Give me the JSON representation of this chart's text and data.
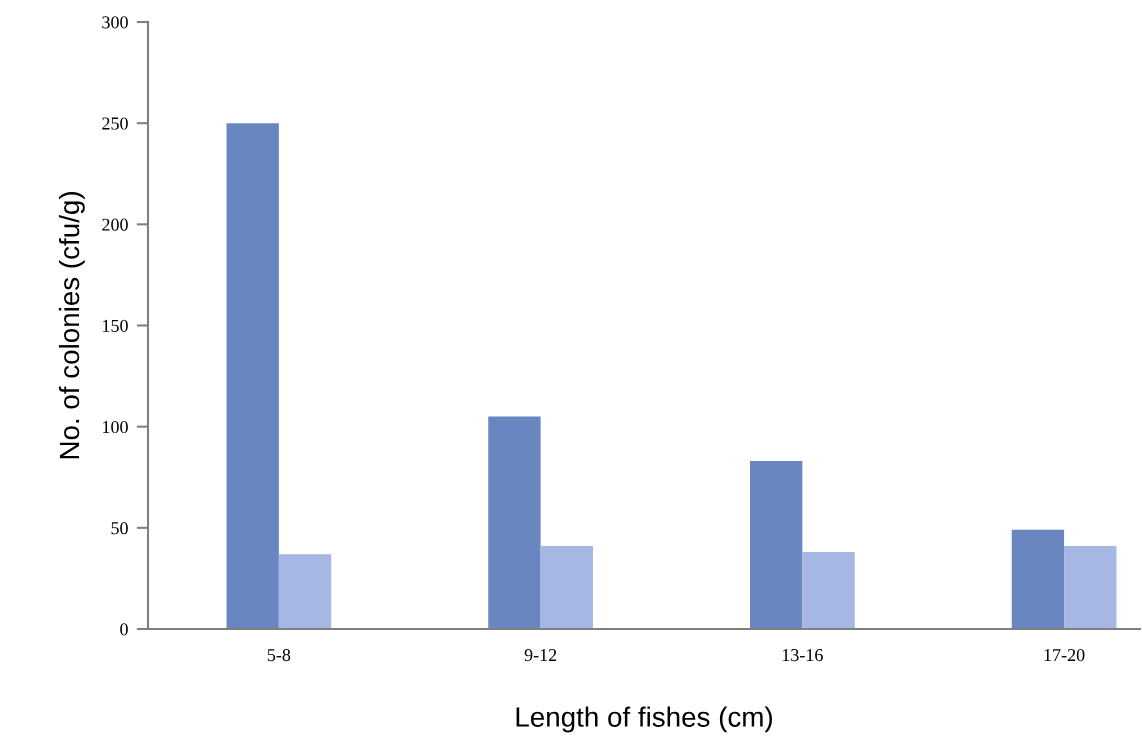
{
  "chart_data": {
    "type": "bar",
    "xlabel": "Length of fishes (cm)",
    "ylabel": "No. of colonies (cfu/g)",
    "categories": [
      "5-8",
      "9-12",
      "13-16",
      "17-20"
    ],
    "series": [
      {
        "color": "#6886c0",
        "values": [
          250,
          105,
          83,
          49
        ]
      },
      {
        "color": "#a5b7e2",
        "values": [
          37,
          41,
          38,
          41
        ]
      }
    ],
    "ylim": [
      0,
      300
    ],
    "yticks": [
      0,
      50,
      100,
      150,
      200,
      250,
      300
    ],
    "grid": false,
    "legend": false
  }
}
